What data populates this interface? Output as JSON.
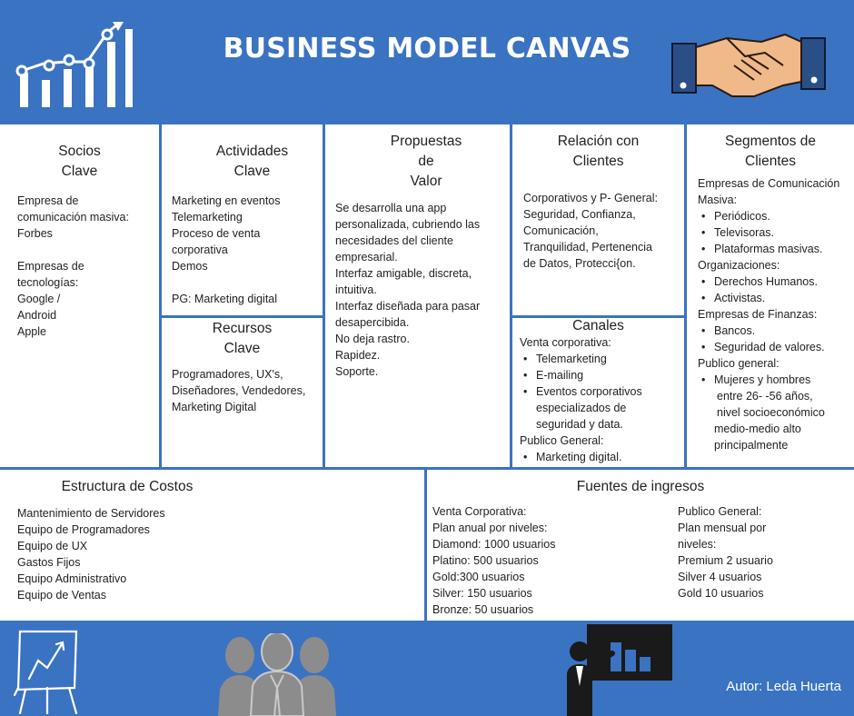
{
  "header": {
    "title": "BUSINESS MODEL CANVAS"
  },
  "socios": {
    "title_l1": "Socios",
    "title_l2": "Clave",
    "lines_a": [
      "Empresa de",
      "comunicación masiva:",
      "Forbes"
    ],
    "lines_b": [
      "Empresas de",
      "tecnologías:",
      "Google /",
      "Android",
      "Apple"
    ]
  },
  "actividades": {
    "title_l1": "Actividades",
    "title_l2": "Clave",
    "lines": [
      "Marketing en eventos",
      "Telemarketing",
      "Proceso de venta",
      "corporativa",
      "Demos"
    ],
    "pg": "PG: Marketing digital"
  },
  "recursos": {
    "title_l1": "Recursos",
    "title_l2": "Clave",
    "lines": [
      "Programadores, UX's,",
      "Diseñadores, Vendedores,",
      "Marketing Digital"
    ]
  },
  "propuestas": {
    "title_l1": "Propuestas",
    "title_l2": "de",
    "title_l3": "Valor",
    "lines": [
      "Se desarrolla una app",
      "personalizada, cubriendo las",
      "necesidades del cliente",
      "empresarial.",
      "Interfaz amigable, discreta,",
      "intuitiva.",
      "Interfaz diseñada para pasar",
      "desapercibida.",
      "No deja rastro.",
      "Rapidez.",
      "Soporte."
    ]
  },
  "relacion": {
    "title_l1": "Relación con",
    "title_l2": "Clientes",
    "lines": [
      "Corporativos y P- General:",
      "Seguridad, Confianza,",
      "Comunicación,",
      "Tranquilidad, Pertenencia",
      "de Datos, Protecci{on."
    ]
  },
  "canales": {
    "title": "Canales",
    "corp_label": "Venta corporativa:",
    "corp_items": [
      "Telemarketing",
      "E-mailing"
    ],
    "corp_item3_l1": "Eventos corporativos",
    "corp_item3_l2": "especializados de",
    "corp_item3_l3": "seguridad y data.",
    "pub_label": "Publico General:",
    "pub_items": [
      "Marketing digital."
    ]
  },
  "segmentos": {
    "title_l1": "Segmentos de",
    "title_l2": "Clientes",
    "g1_l1": "Empresas de Comunicación",
    "g1_l2": "Masiva:",
    "g1_items": [
      "Periódicos.",
      "Televisoras.",
      "Plataformas masivas."
    ],
    "g2_label": "Organizaciones:",
    "g2_items": [
      "Derechos Humanos.",
      "Activistas."
    ],
    "g3_label": "Empresas de Finanzas:",
    "g3_items": [
      "Bancos.",
      "Seguridad de valores."
    ],
    "g4_label": "Publico general:",
    "g4_item_l1": "Mujeres y hombres",
    "g4_item_l2": "entre 26- -56 años,",
    "g4_item_l3": "nivel socioeconómico",
    "g4_item_l4": "medio-medio alto",
    "g4_item_l5": "principalmente"
  },
  "costos": {
    "title": "Estructura de Costos",
    "lines": [
      "Mantenimiento de Servidores",
      "Equipo de Programadores",
      "Equipo de UX",
      "Gastos Fijos",
      "Equipo Administrativo",
      "Equipo de Ventas"
    ]
  },
  "ingresos": {
    "title": "Fuentes de ingresos",
    "corp_lines": [
      "Venta Corporativa:",
      "Plan anual por niveles:",
      "Diamond: 1000 usuarios",
      "Platino: 500 usuarios",
      "Gold:300 usuarios",
      "Silver: 150 usuarios",
      "Bronze: 50 usuarios"
    ],
    "pub_lines": [
      "Publico General:",
      "Plan mensual por",
      "niveles:",
      "Premium 2 usuario",
      "Silver 4 usuarios",
      "Gold 10 usuarios"
    ]
  },
  "footer": {
    "author": "Autor: Leda Huerta"
  },
  "colors": {
    "brand_blue": "#3a73c2",
    "text": "#222222",
    "icon_gray": "#8c8c8c"
  },
  "icons": [
    "bar-chart-growth-icon",
    "handshake-icon",
    "flipchart-icon",
    "team-icon",
    "presenter-icon"
  ]
}
